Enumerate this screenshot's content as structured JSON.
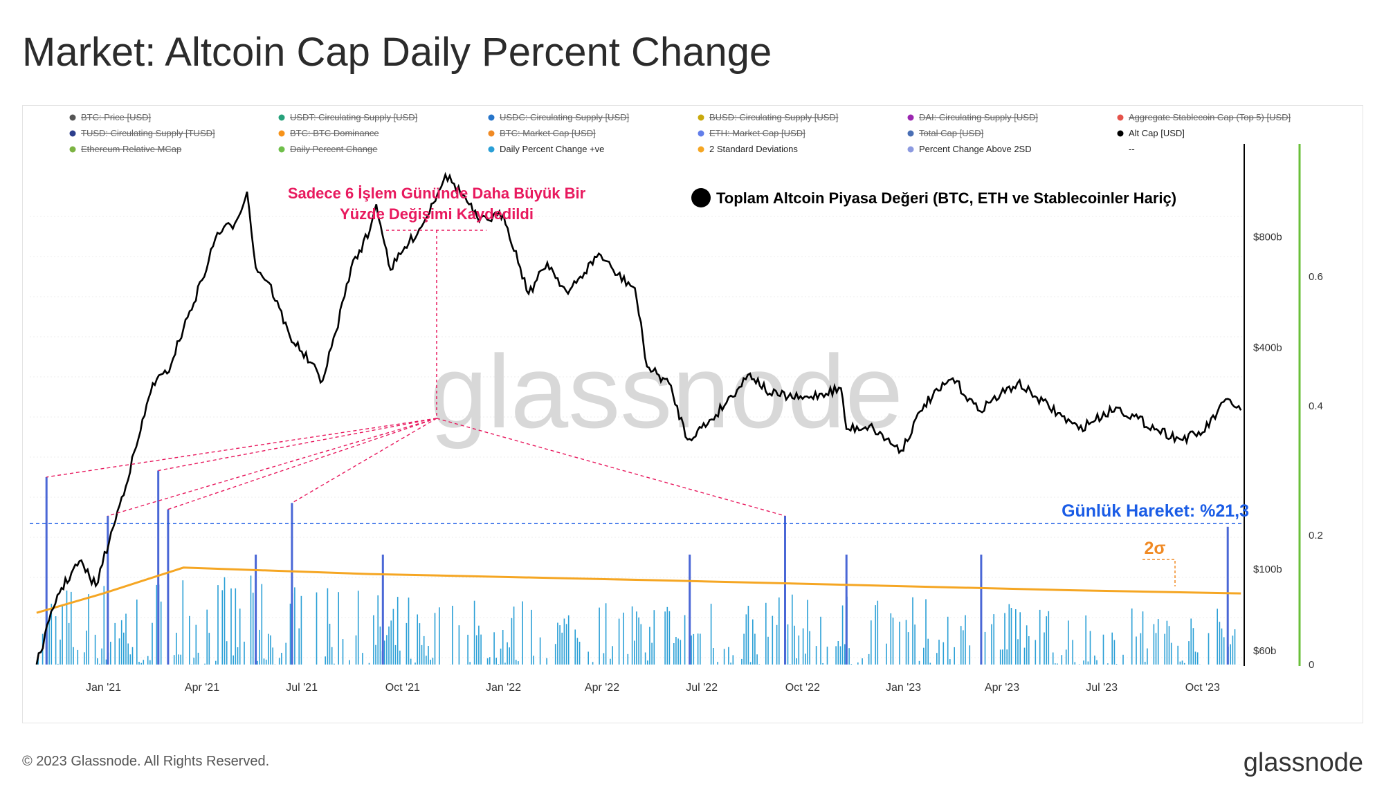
{
  "page": {
    "title": "Market: Altcoin Cap Daily Percent Change",
    "copyright": "© 2023 Glassnode. All Rights Reserved.",
    "logo": "glassnode",
    "watermark": "glassnode"
  },
  "legend": [
    {
      "label": "BTC: Price [USD]",
      "color": "#555555",
      "active": false
    },
    {
      "label": "USDT: Circulating Supply [USD]",
      "color": "#26a17b",
      "active": false
    },
    {
      "label": "USDC: Circulating Supply [USD]",
      "color": "#2775ca",
      "active": false
    },
    {
      "label": "BUSD: Circulating Supply [USD]",
      "color": "#c9a90c",
      "active": false
    },
    {
      "label": "DAI: Circulating Supply [USD]",
      "color": "#9b27b0",
      "active": false
    },
    {
      "label": "Aggregate Stablecoin Cap (Top 5) [USD]",
      "color": "#e5534b",
      "active": false
    },
    {
      "label": "TUSD: Circulating Supply [TUSD]",
      "color": "#2c3e8c",
      "active": false
    },
    {
      "label": "BTC: BTC Dominance",
      "color": "#f7931a",
      "active": false
    },
    {
      "label": "BTC: Market Cap [USD]",
      "color": "#f08a24",
      "active": false
    },
    {
      "label": "ETH: Market Cap [USD]",
      "color": "#627eea",
      "active": false
    },
    {
      "label": "Total Cap [USD]",
      "color": "#4a6fb5",
      "active": false
    },
    {
      "label": "Alt Cap [USD]",
      "color": "#000000",
      "active": true
    },
    {
      "label": "Ethereum Relative MCap",
      "color": "#7cb342",
      "active": false
    },
    {
      "label": "Daily Percent Change",
      "color": "#6fbf4a",
      "active": false
    },
    {
      "label": "Daily Percent Change +ve",
      "color": "#2a9fd6",
      "active": true
    },
    {
      "label": "2 Standard Deviations",
      "color": "#f5a623",
      "active": true
    },
    {
      "label": "Percent Change Above 2SD",
      "color": "#8c9ae0",
      "active": true
    },
    {
      "label": "--",
      "color": "",
      "active": true
    }
  ],
  "annotations": {
    "top_line1": "Sadece 6 İşlem Gününde Daha Büyük Bir",
    "top_line2": "Yüzde Değişimi Kaydedildi",
    "series_label": "Toplam Altcoin Piyasa Değeri (BTC, ETH ve Stablecoinler Hariç)",
    "daily_move": "Günlük Hareket: %21,3",
    "sigma": "2σ"
  },
  "colors": {
    "altcap": "#000000",
    "pct_positive": "#2a9fd6",
    "above_2sd": "#4a67d6",
    "two_sd": "#f5a623",
    "highlight_pink": "#e8195e",
    "highlight_blue": "#1a5ce6",
    "right_axis_green": "#6abf3a"
  },
  "chart_data": {
    "type": "line",
    "x_tick_labels": [
      "Jan '21",
      "Apr '21",
      "Jul '21",
      "Oct '21",
      "Jan '22",
      "Apr '22",
      "Jul '22",
      "Oct '22",
      "Jan '23",
      "Apr '23",
      "Jul '23",
      "Oct '23"
    ],
    "left_axis_ticks": [
      "$800b",
      "$400b",
      "$100b",
      "$60b"
    ],
    "right_axis_ticks": [
      "0.6",
      "0.4",
      "0.2",
      "0"
    ],
    "y_left_scale": "log",
    "y_right_range": [
      0,
      0.8
    ],
    "grid": true,
    "legend_position": "top",
    "series": [
      {
        "name": "Alt Cap [USD]",
        "axis": "left",
        "unit": "USD billions",
        "points": [
          [
            "2020-11-01",
            55
          ],
          [
            "2020-11-20",
            85
          ],
          [
            "2020-12-10",
            105
          ],
          [
            "2020-12-25",
            90
          ],
          [
            "2021-01-10",
            130
          ],
          [
            "2021-01-31",
            215
          ],
          [
            "2021-02-15",
            320
          ],
          [
            "2021-02-28",
            340
          ],
          [
            "2021-03-15",
            450
          ],
          [
            "2021-04-01",
            610
          ],
          [
            "2021-04-15",
            820
          ],
          [
            "2021-05-01",
            870
          ],
          [
            "2021-05-12",
            1060
          ],
          [
            "2021-05-20",
            660
          ],
          [
            "2021-06-01",
            600
          ],
          [
            "2021-06-20",
            430
          ],
          [
            "2021-07-01",
            390
          ],
          [
            "2021-07-20",
            325
          ],
          [
            "2021-08-01",
            440
          ],
          [
            "2021-08-15",
            660
          ],
          [
            "2021-09-01",
            830
          ],
          [
            "2021-09-07",
            980
          ],
          [
            "2021-09-20",
            650
          ],
          [
            "2021-10-01",
            730
          ],
          [
            "2021-10-20",
            870
          ],
          [
            "2021-11-09",
            1180
          ],
          [
            "2021-11-25",
            1040
          ],
          [
            "2021-12-10",
            880
          ],
          [
            "2022-01-01",
            920
          ],
          [
            "2022-01-24",
            560
          ],
          [
            "2022-02-10",
            680
          ],
          [
            "2022-03-01",
            560
          ],
          [
            "2022-03-29",
            720
          ],
          [
            "2022-04-15",
            630
          ],
          [
            "2022-05-01",
            580
          ],
          [
            "2022-05-12",
            355
          ],
          [
            "2022-06-01",
            320
          ],
          [
            "2022-06-18",
            225
          ],
          [
            "2022-07-10",
            255
          ],
          [
            "2022-08-14",
            340
          ],
          [
            "2022-09-01",
            300
          ],
          [
            "2022-10-01",
            290
          ],
          [
            "2022-11-05",
            310
          ],
          [
            "2022-11-10",
            240
          ],
          [
            "2022-12-01",
            245
          ],
          [
            "2022-12-30",
            210
          ],
          [
            "2023-01-20",
            280
          ],
          [
            "2023-02-15",
            330
          ],
          [
            "2023-03-10",
            270
          ],
          [
            "2023-04-15",
            320
          ],
          [
            "2023-05-01",
            295
          ],
          [
            "2023-06-10",
            240
          ],
          [
            "2023-07-14",
            275
          ],
          [
            "2023-08-20",
            240
          ],
          [
            "2023-09-11",
            225
          ],
          [
            "2023-10-01",
            235
          ],
          [
            "2023-10-24",
            290
          ],
          [
            "2023-11-05",
            270
          ]
        ]
      },
      {
        "name": "2 Standard Deviations",
        "axis": "right",
        "points": [
          [
            "2020-11-01",
            0.08
          ],
          [
            "2021-01-01",
            0.11
          ],
          [
            "2021-03-15",
            0.15
          ],
          [
            "2021-09-01",
            0.14
          ],
          [
            "2022-06-01",
            0.13
          ],
          [
            "2023-06-01",
            0.115
          ],
          [
            "2023-11-05",
            0.11
          ]
        ]
      },
      {
        "name": "Percent Change Above 2SD",
        "axis": "right",
        "points": [
          [
            "2020-11-10",
            0.29
          ],
          [
            "2021-01-05",
            0.23
          ],
          [
            "2021-02-20",
            0.3
          ],
          [
            "2021-03-01",
            0.24
          ],
          [
            "2021-05-20",
            0.17
          ],
          [
            "2021-06-22",
            0.25
          ],
          [
            "2021-09-13",
            0.17
          ],
          [
            "2022-06-20",
            0.17
          ],
          [
            "2022-09-15",
            0.23
          ],
          [
            "2022-11-10",
            0.17
          ],
          [
            "2023-03-13",
            0.17
          ],
          [
            "2023-10-24",
            0.213
          ]
        ]
      },
      {
        "name": "Daily Percent Change +ve",
        "axis": "right",
        "points": [
          [
            "2020-12-01",
            0.1
          ],
          [
            "2021-03-15",
            0.12
          ],
          [
            "2021-08-01",
            0.09
          ],
          [
            "2022-01-01",
            0.08
          ],
          [
            "2022-07-01",
            0.09
          ],
          [
            "2023-01-15",
            0.08
          ],
          [
            "2023-07-01",
            0.07
          ]
        ]
      }
    ],
    "reference_line": {
      "name": "Günlük Hareket",
      "value": 0.213,
      "axis": "right"
    }
  }
}
